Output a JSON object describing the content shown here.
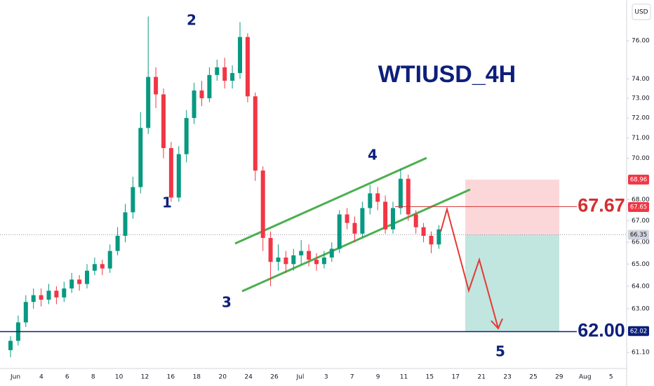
{
  "chart_data": {
    "type": "candlestick",
    "title": "WTIUSD_4H",
    "y_unit": "USD",
    "log_scale": true,
    "ylim": [
      60.42,
      78.2
    ],
    "yticks": [
      {
        "value": 76,
        "label": "76.00"
      },
      {
        "value": 74,
        "label": "74.00"
      },
      {
        "value": 73,
        "label": "73.00"
      },
      {
        "value": 72,
        "label": "72.00"
      },
      {
        "value": 71,
        "label": "71.00"
      },
      {
        "value": 70,
        "label": "70.00"
      },
      {
        "value": 68,
        "label": "68.00"
      },
      {
        "value": 67,
        "label": "67.00"
      },
      {
        "value": 66,
        "label": "66.00"
      },
      {
        "value": 65,
        "label": "65.00"
      },
      {
        "value": 64,
        "label": "64.00"
      },
      {
        "value": 63,
        "label": "63.00"
      },
      {
        "value": 61.1,
        "label": "61.10"
      }
    ],
    "x_labels": [
      "Jun",
      "4",
      "6",
      "8",
      "10",
      "12",
      "16",
      "18",
      "20",
      "24",
      "26",
      "Jul",
      "3",
      "7",
      "9",
      "11",
      "15",
      "17",
      "21",
      "23",
      "25",
      "29",
      "Aug",
      "5"
    ],
    "up_color": "#089981",
    "down_color": "#f23645",
    "series": {
      "open": [
        61.2,
        61.6,
        62.4,
        63.3,
        63.6,
        63.4,
        63.8,
        63.5,
        63.9,
        64.3,
        64.1,
        64.7,
        65.0,
        64.8,
        65.6,
        66.3,
        67.4,
        68.6,
        71.5,
        74.1,
        73.2,
        70.5,
        68.1,
        70.2,
        72.0,
        73.4,
        73.0,
        74.2,
        74.6,
        73.9,
        74.3,
        76.2,
        73.1,
        69.4,
        66.2,
        65.1,
        65.3,
        65.0,
        65.4,
        65.6,
        65.2,
        65.0,
        65.3,
        65.7,
        67.3,
        66.9,
        66.4,
        67.6,
        68.3,
        67.9,
        66.6,
        67.6,
        69.0,
        67.3,
        66.7,
        66.3,
        65.9
      ],
      "high": [
        61.8,
        62.7,
        63.6,
        63.9,
        63.9,
        64.1,
        64.0,
        64.2,
        64.6,
        64.5,
        65.0,
        65.3,
        65.2,
        65.9,
        66.7,
        67.8,
        69.1,
        72.3,
        77.3,
        74.6,
        73.5,
        70.8,
        70.6,
        72.4,
        73.8,
        73.9,
        74.6,
        75.0,
        75.1,
        74.7,
        77.0,
        76.4,
        73.3,
        69.6,
        66.5,
        65.9,
        65.6,
        65.7,
        66.1,
        65.9,
        65.5,
        65.6,
        66.0,
        67.5,
        67.6,
        67.2,
        67.9,
        68.7,
        68.6,
        68.2,
        67.9,
        69.5,
        69.2,
        67.5,
        66.9,
        66.5,
        66.8
      ],
      "low": [
        60.9,
        61.4,
        62.2,
        63.0,
        63.1,
        63.2,
        63.2,
        63.3,
        63.7,
        63.8,
        63.9,
        64.5,
        64.5,
        64.6,
        65.4,
        66.0,
        67.1,
        68.3,
        71.2,
        72.5,
        70.0,
        67.9,
        67.9,
        69.8,
        71.7,
        72.6,
        72.8,
        73.9,
        73.5,
        73.5,
        74.0,
        72.8,
        68.9,
        65.6,
        64.0,
        64.7,
        64.6,
        64.7,
        65.0,
        64.9,
        64.7,
        64.8,
        65.1,
        65.5,
        66.6,
        66.0,
        66.2,
        67.3,
        67.5,
        66.4,
        66.4,
        67.3,
        67.0,
        66.4,
        66.0,
        65.5,
        65.7
      ],
      "close": [
        61.6,
        62.4,
        63.3,
        63.6,
        63.4,
        63.8,
        63.5,
        63.9,
        64.3,
        64.1,
        64.7,
        65.0,
        64.8,
        65.6,
        66.3,
        67.4,
        68.6,
        71.5,
        74.1,
        73.2,
        70.5,
        68.1,
        70.2,
        72.0,
        73.4,
        73.0,
        74.2,
        74.6,
        73.9,
        74.3,
        76.2,
        73.1,
        69.4,
        66.2,
        65.1,
        65.3,
        65.0,
        65.4,
        65.6,
        65.2,
        65.0,
        65.3,
        65.7,
        67.3,
        66.9,
        66.4,
        67.6,
        68.3,
        67.9,
        66.6,
        67.6,
        69.0,
        67.3,
        66.7,
        66.3,
        65.9,
        66.6
      ]
    },
    "wave_labels": [
      "1",
      "2",
      "3",
      "4",
      "5"
    ],
    "levels": [
      {
        "value": 67.67,
        "label": "67.67",
        "color": "#d32f2f"
      },
      {
        "value": 62.0,
        "label": "62.00",
        "color": "#0d1f7a"
      }
    ],
    "price_badges": [
      {
        "value": 68.96,
        "label": "68.96",
        "color": "#f23645"
      },
      {
        "value": 67.65,
        "label": "67.65",
        "color": "#f23645"
      },
      {
        "value": 66.35,
        "label": "66.35",
        "color": "#d1d4dc"
      },
      {
        "value": 62.02,
        "label": "62.02",
        "color": "#0d1f7a"
      }
    ]
  }
}
